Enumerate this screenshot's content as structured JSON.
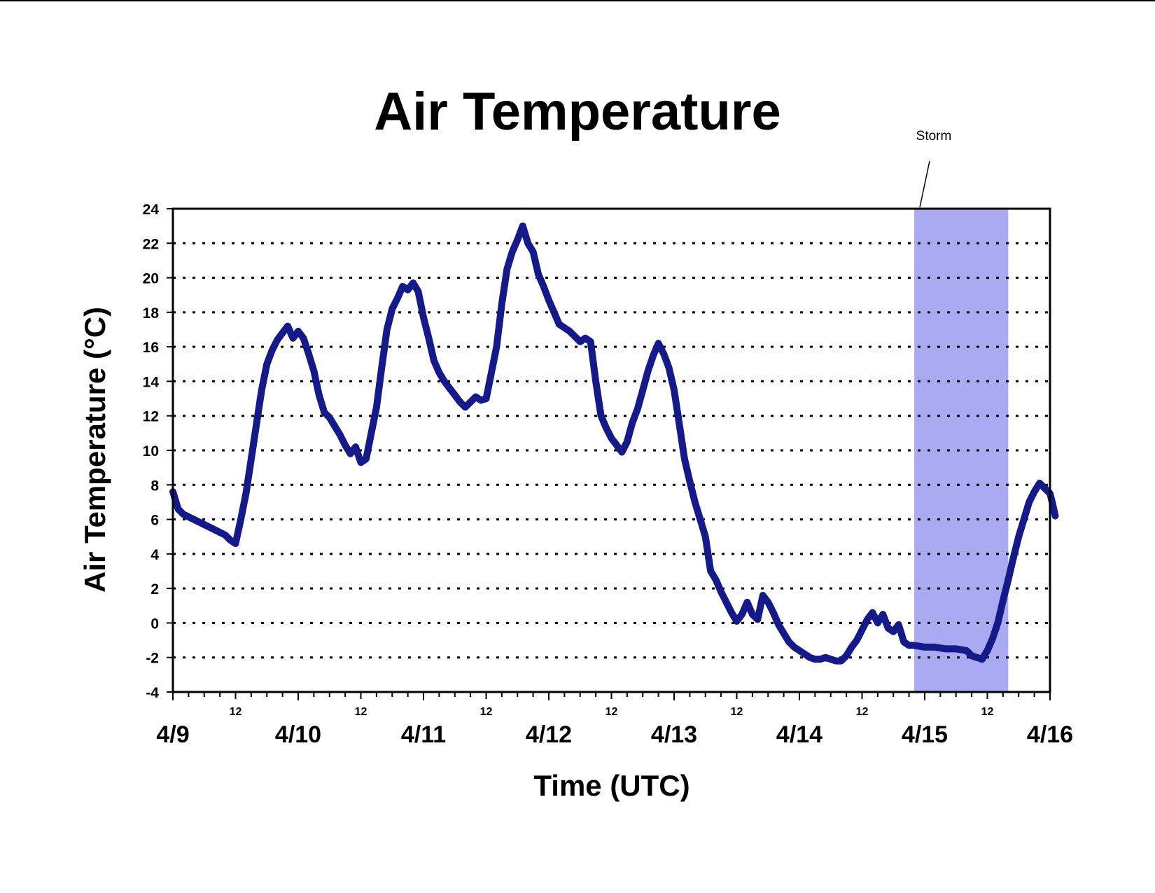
{
  "chart_data": {
    "type": "line",
    "title": "Air Temperature",
    "xlabel": "Time (UTC)",
    "ylabel": "Air Temperature (°C)",
    "ylim": [
      -4,
      24
    ],
    "yticks": [
      "24",
      "22",
      "20",
      "18",
      "16",
      "14",
      "12",
      "10",
      "8",
      "6",
      "4",
      "2",
      "0",
      "-2",
      "-4"
    ],
    "xlim": [
      "4/9 00:00",
      "4/16 00:00"
    ],
    "x_major_labels": [
      "4/9",
      "4/10",
      "4/11",
      "4/12",
      "4/13",
      "4/14",
      "4/15",
      "4/16"
    ],
    "x_minor_label": "12",
    "grid": "horizontal dotted",
    "legend": "none",
    "colors": {
      "series": "#141a8a",
      "storm_band": "#aaaaf2"
    },
    "annotations": [
      {
        "text": "Storm",
        "x_start": "4/14 22:00",
        "x_end": "4/15 16:00"
      }
    ],
    "series": [
      {
        "x_hours_label": "hours since 4/9 00:00",
        "points": [
          [
            0,
            7.6
          ],
          [
            1,
            6.6
          ],
          [
            2,
            6.3
          ],
          [
            4,
            6.0
          ],
          [
            6,
            5.7
          ],
          [
            8,
            5.4
          ],
          [
            10,
            5.1
          ],
          [
            11,
            4.8
          ],
          [
            12,
            4.6
          ],
          [
            13,
            6.0
          ],
          [
            14,
            7.5
          ],
          [
            15,
            9.5
          ],
          [
            16,
            11.5
          ],
          [
            17,
            13.5
          ],
          [
            18,
            15.0
          ],
          [
            19,
            15.8
          ],
          [
            20,
            16.4
          ],
          [
            21,
            16.8
          ],
          [
            22,
            17.2
          ],
          [
            23,
            16.5
          ],
          [
            24,
            16.9
          ],
          [
            25,
            16.5
          ],
          [
            26,
            15.6
          ],
          [
            27,
            14.6
          ],
          [
            28,
            13.2
          ],
          [
            29,
            12.2
          ],
          [
            30,
            11.9
          ],
          [
            31,
            11.4
          ],
          [
            32,
            10.9
          ],
          [
            33,
            10.3
          ],
          [
            34,
            9.8
          ],
          [
            35,
            10.2
          ],
          [
            36,
            9.3
          ],
          [
            37,
            9.5
          ],
          [
            38,
            11.0
          ],
          [
            39,
            12.5
          ],
          [
            40,
            14.8
          ],
          [
            41,
            17.0
          ],
          [
            42,
            18.2
          ],
          [
            43,
            18.8
          ],
          [
            44,
            19.5
          ],
          [
            45,
            19.3
          ],
          [
            46,
            19.7
          ],
          [
            47,
            19.2
          ],
          [
            48,
            17.7
          ],
          [
            49,
            16.5
          ],
          [
            50,
            15.2
          ],
          [
            51,
            14.5
          ],
          [
            52,
            14.0
          ],
          [
            53,
            13.6
          ],
          [
            54,
            13.2
          ],
          [
            55,
            12.8
          ],
          [
            56,
            12.5
          ],
          [
            57,
            12.8
          ],
          [
            58,
            13.1
          ],
          [
            59,
            12.9
          ],
          [
            60,
            13.0
          ],
          [
            61,
            14.5
          ],
          [
            62,
            16.0
          ],
          [
            63,
            18.5
          ],
          [
            64,
            20.5
          ],
          [
            65,
            21.5
          ],
          [
            66,
            22.2
          ],
          [
            67,
            23.0
          ],
          [
            68,
            22.0
          ],
          [
            69,
            21.5
          ],
          [
            70,
            20.2
          ],
          [
            71,
            19.5
          ],
          [
            72,
            18.7
          ],
          [
            73,
            18.0
          ],
          [
            74,
            17.3
          ],
          [
            75,
            17.1
          ],
          [
            76,
            16.9
          ],
          [
            77,
            16.6
          ],
          [
            78,
            16.3
          ],
          [
            79,
            16.5
          ],
          [
            80,
            16.3
          ],
          [
            81,
            14.0
          ],
          [
            82,
            12.0
          ],
          [
            83,
            11.3
          ],
          [
            84,
            10.7
          ],
          [
            85,
            10.3
          ],
          [
            86,
            9.9
          ],
          [
            87,
            10.5
          ],
          [
            88,
            11.6
          ],
          [
            89,
            12.4
          ],
          [
            90,
            13.5
          ],
          [
            91,
            14.6
          ],
          [
            92,
            15.5
          ],
          [
            93,
            16.2
          ],
          [
            94,
            15.6
          ],
          [
            95,
            14.8
          ],
          [
            96,
            13.5
          ],
          [
            97,
            11.5
          ],
          [
            98,
            9.5
          ],
          [
            99,
            8.2
          ],
          [
            100,
            7.0
          ],
          [
            101,
            6.0
          ],
          [
            102,
            5.0
          ],
          [
            103,
            3.0
          ],
          [
            104,
            2.5
          ],
          [
            105,
            1.8
          ],
          [
            106,
            1.2
          ],
          [
            107,
            0.6
          ],
          [
            108,
            0.1
          ],
          [
            109,
            0.5
          ],
          [
            110,
            1.2
          ],
          [
            111,
            0.5
          ],
          [
            112,
            0.2
          ],
          [
            113,
            1.6
          ],
          [
            114,
            1.2
          ],
          [
            115,
            0.6
          ],
          [
            116,
            -0.1
          ],
          [
            117,
            -0.6
          ],
          [
            118,
            -1.1
          ],
          [
            119,
            -1.4
          ],
          [
            120,
            -1.6
          ],
          [
            121,
            -1.8
          ],
          [
            122,
            -2.0
          ],
          [
            123,
            -2.1
          ],
          [
            124,
            -2.1
          ],
          [
            125,
            -2.0
          ],
          [
            126,
            -2.1
          ],
          [
            127,
            -2.2
          ],
          [
            128,
            -2.2
          ],
          [
            129,
            -1.9
          ],
          [
            130,
            -1.4
          ],
          [
            131,
            -1.0
          ],
          [
            132,
            -0.4
          ],
          [
            133,
            0.2
          ],
          [
            134,
            0.6
          ],
          [
            135,
            0.0
          ],
          [
            136,
            0.5
          ],
          [
            137,
            -0.3
          ],
          [
            138,
            -0.5
          ],
          [
            139,
            -0.1
          ],
          [
            140,
            -1.1
          ],
          [
            141,
            -1.3
          ],
          [
            142,
            -1.3
          ],
          [
            144,
            -1.4
          ],
          [
            146,
            -1.4
          ],
          [
            148,
            -1.5
          ],
          [
            150,
            -1.5
          ],
          [
            152,
            -1.6
          ],
          [
            153,
            -1.9
          ],
          [
            154,
            -2.0
          ],
          [
            155,
            -2.1
          ],
          [
            156,
            -1.6
          ],
          [
            157,
            -0.9
          ],
          [
            158,
            0.0
          ],
          [
            159,
            1.3
          ],
          [
            160,
            2.5
          ],
          [
            161,
            3.8
          ],
          [
            162,
            5.0
          ],
          [
            163,
            6.0
          ],
          [
            164,
            7.0
          ],
          [
            165,
            7.6
          ],
          [
            166,
            8.1
          ],
          [
            167,
            7.8
          ],
          [
            168,
            7.5
          ],
          [
            168.5,
            6.9
          ],
          [
            169,
            6.2
          ]
        ]
      }
    ]
  }
}
